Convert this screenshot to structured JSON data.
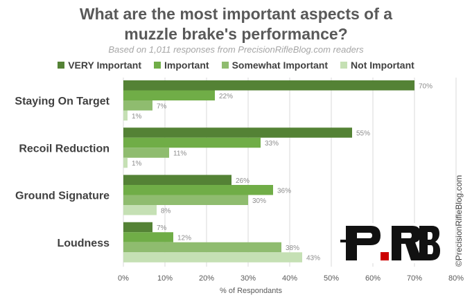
{
  "header": {
    "title_line1": "What are the most important aspects of a",
    "title_line2": "muzzle brake's performance?",
    "subtitle": "Based on 1,011 responses from PrecisionRifleBlog.com readers"
  },
  "credit": "©PrecisionRifleBlog.com",
  "logo": {
    "text": "PRB",
    "colors": {
      "p": "#111111",
      "dot": "#cc0000",
      "rb": "#111111"
    }
  },
  "chart_data": {
    "type": "bar",
    "orientation": "horizontal",
    "title": "What are the most important aspects of a muzzle brake's performance?",
    "subtitle": "Based on 1,011 responses from PrecisionRifleBlog.com readers",
    "xlabel": "% of Respondants",
    "ylabel": "",
    "xlim": [
      0,
      80
    ],
    "x_ticks": [
      "0%",
      "10%",
      "20%",
      "30%",
      "40%",
      "50%",
      "60%",
      "70%",
      "80%"
    ],
    "x_tick_values": [
      0,
      10,
      20,
      30,
      40,
      50,
      60,
      70,
      80
    ],
    "grid": "vertical",
    "legend_position": "top",
    "categories": [
      "Staying On Target",
      "Recoil Reduction",
      "Ground Signature",
      "Loudness"
    ],
    "series": [
      {
        "name": "VERY Important",
        "color": "#548235",
        "values": [
          70,
          55,
          26,
          7
        ]
      },
      {
        "name": "Important",
        "color": "#70ad47",
        "values": [
          22,
          33,
          36,
          12
        ]
      },
      {
        "name": "Somewhat Important",
        "color": "#8fbc6f",
        "values": [
          7,
          11,
          30,
          38
        ]
      },
      {
        "name": "Not Important",
        "color": "#c5e0b4",
        "values": [
          1,
          1,
          8,
          43
        ]
      }
    ]
  }
}
